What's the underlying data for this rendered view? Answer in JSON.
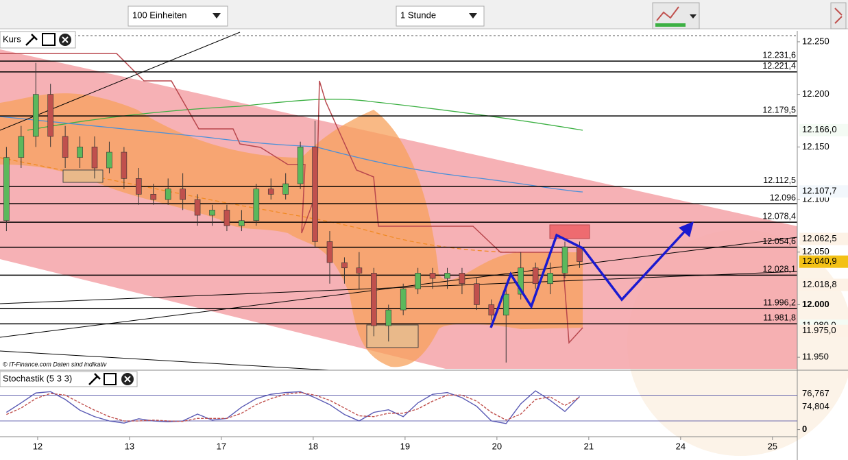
{
  "toolbar": {
    "units": "100 Einheiten",
    "interval": "1 Stunde"
  },
  "chart_data": [
    {
      "type": "candlestick",
      "title": "Kurs",
      "footnote": "© IT-Finance.com  Daten sind indikativ",
      "up_color": "#5cb85c",
      "down_color": "#c0504d",
      "xlim": [
        -0.41,
        8.27
      ],
      "xticks": [
        {
          "value": 0,
          "label": "12"
        },
        {
          "value": 1,
          "label": "13"
        },
        {
          "value": 2,
          "label": "17"
        },
        {
          "value": 3,
          "label": "18"
        },
        {
          "value": 4,
          "label": "19"
        },
        {
          "value": 5,
          "label": "20"
        },
        {
          "value": 6,
          "label": "21"
        },
        {
          "value": 7,
          "label": "24"
        },
        {
          "value": 8,
          "label": "25"
        }
      ],
      "ylim": [
        11.939,
        12.2604
      ],
      "yticks": [
        {
          "value": 12.25,
          "label": "12.250"
        },
        {
          "value": 12.2,
          "label": "12.200"
        },
        {
          "value": 12.15,
          "label": "12.150"
        },
        {
          "value": 12.1,
          "label": "12.100"
        },
        {
          "value": 12.05,
          "label": "12.050"
        },
        {
          "value": 12,
          "label": "12.000"
        },
        {
          "value": 11.95,
          "label": "11.950"
        }
      ],
      "x": [
        -0.34,
        -0.18,
        -0.02,
        0.14,
        0.3,
        0.46,
        0.62,
        0.78,
        0.94,
        1.1,
        1.26,
        1.42,
        1.58,
        1.74,
        1.9,
        2.06,
        2.22,
        2.38,
        2.54,
        2.7,
        2.86,
        3.02,
        3.18,
        3.34,
        3.5,
        3.66,
        3.82,
        3.98,
        4.14,
        4.3,
        4.46,
        4.62,
        4.78,
        4.94,
        5.1,
        5.26,
        5.42,
        5.58,
        5.74,
        5.9
      ],
      "open": [
        12.08,
        12.14,
        12.16,
        12.2,
        12.16,
        12.14,
        12.15,
        12.13,
        12.145,
        12.12,
        12.105,
        12.1,
        12.11,
        12.1,
        12.085,
        12.09,
        12.075,
        12.08,
        12.11,
        12.105,
        12.115,
        12.15,
        12.06,
        12.04,
        12.035,
        12.03,
        11.98,
        11.995,
        12.015,
        12.03,
        12.025,
        12.03,
        12.02,
        12.0,
        11.99,
        12.01,
        12.035,
        12.02,
        12.03,
        12.055
      ],
      "high": [
        12.15,
        12.17,
        12.23,
        12.21,
        12.17,
        12.16,
        12.16,
        12.155,
        12.15,
        12.13,
        12.115,
        12.12,
        12.125,
        12.105,
        12.095,
        12.095,
        12.09,
        12.115,
        12.12,
        12.125,
        12.155,
        12.175,
        12.07,
        12.045,
        12.05,
        12.035,
        12.0,
        12.02,
        12.035,
        12.035,
        12.035,
        12.035,
        12.025,
        12.005,
        12.02,
        12.05,
        12.04,
        12.04,
        12.06,
        12.06
      ],
      "low": [
        12.07,
        12.13,
        12.15,
        12.15,
        12.13,
        12.13,
        12.12,
        12.125,
        12.11,
        12.095,
        12.095,
        12.095,
        12.09,
        12.075,
        12.075,
        12.07,
        12.07,
        12.075,
        12.1,
        12.1,
        12.11,
        12.055,
        12.02,
        12.02,
        12.015,
        11.97,
        11.965,
        11.99,
        12.01,
        12.015,
        12.015,
        12.01,
        11.995,
        11.985,
        11.945,
        12.005,
        12.015,
        12.01,
        12.025,
        12.035
      ],
      "close": [
        12.14,
        12.16,
        12.2,
        12.16,
        12.14,
        12.15,
        12.13,
        12.145,
        12.12,
        12.105,
        12.1,
        12.11,
        12.1,
        12.085,
        12.09,
        12.075,
        12.08,
        12.11,
        12.105,
        12.115,
        12.15,
        12.06,
        12.04,
        12.035,
        12.03,
        11.98,
        11.995,
        12.015,
        12.03,
        12.025,
        12.03,
        12.02,
        12.0,
        11.99,
        12.01,
        12.035,
        12.02,
        12.03,
        12.055,
        12.041
      ],
      "levels": [
        {
          "value": 12.2316,
          "label": "12.231,6"
        },
        {
          "value": 12.2214,
          "label": "12.221,4"
        },
        {
          "value": 12.1795,
          "label": "12.179,5"
        },
        {
          "value": 12.1125,
          "label": "12.112,5"
        },
        {
          "value": 12.096,
          "label": "12.096"
        },
        {
          "value": 12.0784,
          "label": "12.078,4"
        },
        {
          "value": 12.0546,
          "label": "12.054,6"
        },
        {
          "value": 12.0281,
          "label": "12.028,1"
        },
        {
          "value": 11.9962,
          "label": "11.996,2"
        },
        {
          "value": 11.9818,
          "label": "11.981,8"
        }
      ],
      "value_boxes": [
        {
          "value": 12.166,
          "label": "12.166,0",
          "color": "#3cb043",
          "background": "#f4fbf4"
        },
        {
          "value": 12.1077,
          "label": "12.107,7",
          "color": "#2f7fc8",
          "background": "#f2f7fc"
        },
        {
          "value": 12.0625,
          "label": "12.062,5",
          "color": "#e8913a",
          "background": "#fdf2e6"
        },
        {
          "value": 12.0409,
          "label": "12.040,9",
          "color": "#000000",
          "background": "#f3c116"
        },
        {
          "value": 12.0188,
          "label": "12.018,8",
          "color": "#e8913a",
          "background": "#fdf2e6"
        },
        {
          "value": 11.98,
          "label": "11.980,0",
          "color": "#3cb043",
          "background": "#f4fbf4"
        },
        {
          "value": 11.975,
          "label": "11.975,0",
          "color": "#e8913a",
          "background": "#fdf2e6"
        }
      ]
    },
    {
      "type": "line",
      "title": "Stochastik (5 3 3)",
      "ylim": [
        -15,
        130
      ],
      "yticks": [
        0
      ],
      "hlines": [
        20,
        80
      ],
      "series": [
        {
          "color": "#5a5ab4",
          "values": [
            40,
            62,
            85,
            88,
            70,
            45,
            30,
            20,
            15,
            25,
            20,
            18,
            20,
            36,
            22,
            26,
            52,
            72,
            82,
            86,
            88,
            74,
            58,
            35,
            20,
            40,
            46,
            30,
            62,
            82,
            86,
            74,
            54,
            20,
            14,
            60,
            90,
            68,
            42,
            76.767
          ],
          "last_label": "76,767"
        },
        {
          "color": "#c0504d",
          "values": [
            35,
            50,
            72,
            84,
            80,
            62,
            45,
            30,
            20,
            20,
            22,
            20,
            19,
            26,
            26,
            26,
            38,
            58,
            72,
            82,
            86,
            80,
            68,
            50,
            32,
            30,
            38,
            38,
            48,
            66,
            80,
            80,
            66,
            40,
            22,
            36,
            70,
            76,
            56,
            74.804
          ],
          "last_label": "74,804"
        }
      ]
    }
  ]
}
